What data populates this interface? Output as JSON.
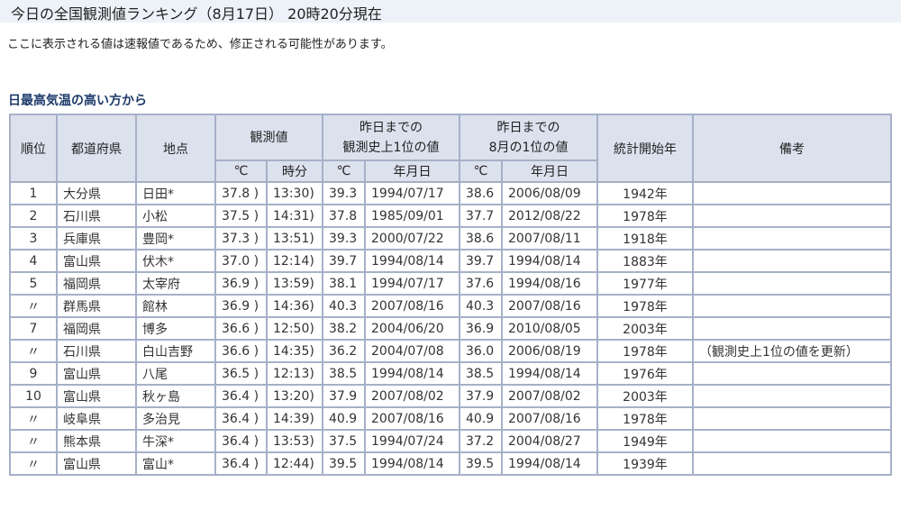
{
  "page": {
    "title": "今日の全国観測値ランキング（8月17日） 20時20分現在",
    "note": "ここに表示される値は速報値であるため、修正される可能性があります。",
    "section_title": "日最高気温の高い方から"
  },
  "colors": {
    "title_bg": "#edf2f8",
    "header_bg": "#dbe2ee",
    "border": "#a6b0c8",
    "section_text": "#1f3b6b"
  },
  "table": {
    "headers": {
      "rank": "順位",
      "prefecture": "都道府県",
      "location": "地点",
      "observed": "観測値",
      "record_all_line1": "昨日までの",
      "record_all_line2": "観測史上1位の値",
      "record_aug_line1": "昨日までの",
      "record_aug_line2": "8月の1位の値",
      "stats_start": "統計開始年",
      "remarks": "備考",
      "sub_celsius": "℃",
      "sub_time": "時分",
      "sub_date": "年月日"
    },
    "rows": [
      {
        "rank": "1",
        "pref": "大分県",
        "loc": "日田*",
        "temp": "37.8 )",
        "time": "13:30)",
        "rec_temp": "39.3",
        "rec_date": "1994/07/17",
        "aug_temp": "38.6",
        "aug_date": "2006/08/09",
        "start": "1942年",
        "remark": ""
      },
      {
        "rank": "2",
        "pref": "石川県",
        "loc": "小松",
        "temp": "37.5 )",
        "time": "14:31)",
        "rec_temp": "37.8",
        "rec_date": "1985/09/01",
        "aug_temp": "37.7",
        "aug_date": "2012/08/22",
        "start": "1978年",
        "remark": ""
      },
      {
        "rank": "3",
        "pref": "兵庫県",
        "loc": "豊岡*",
        "temp": "37.3 )",
        "time": "13:51)",
        "rec_temp": "39.3",
        "rec_date": "2000/07/22",
        "aug_temp": "38.6",
        "aug_date": "2007/08/11",
        "start": "1918年",
        "remark": ""
      },
      {
        "rank": "4",
        "pref": "富山県",
        "loc": "伏木*",
        "temp": "37.0 )",
        "time": "12:14)",
        "rec_temp": "39.7",
        "rec_date": "1994/08/14",
        "aug_temp": "39.7",
        "aug_date": "1994/08/14",
        "start": "1883年",
        "remark": ""
      },
      {
        "rank": "5",
        "pref": "福岡県",
        "loc": "太宰府",
        "temp": "36.9 )",
        "time": "13:59)",
        "rec_temp": "38.1",
        "rec_date": "1994/07/17",
        "aug_temp": "37.6",
        "aug_date": "1994/08/16",
        "start": "1977年",
        "remark": ""
      },
      {
        "rank": "〃",
        "pref": "群馬県",
        "loc": "館林",
        "temp": "36.9 )",
        "time": "14:36)",
        "rec_temp": "40.3",
        "rec_date": "2007/08/16",
        "aug_temp": "40.3",
        "aug_date": "2007/08/16",
        "start": "1978年",
        "remark": ""
      },
      {
        "rank": "7",
        "pref": "福岡県",
        "loc": "博多",
        "temp": "36.6 )",
        "time": "12:50)",
        "rec_temp": "38.2",
        "rec_date": "2004/06/20",
        "aug_temp": "36.9",
        "aug_date": "2010/08/05",
        "start": "2003年",
        "remark": ""
      },
      {
        "rank": "〃",
        "pref": "石川県",
        "loc": "白山吉野",
        "temp": "36.6 )",
        "time": "14:35)",
        "rec_temp": "36.2",
        "rec_date": "2004/07/08",
        "aug_temp": "36.0",
        "aug_date": "2006/08/19",
        "start": "1978年",
        "remark": "（観測史上1位の値を更新）"
      },
      {
        "rank": "9",
        "pref": "富山県",
        "loc": "八尾",
        "temp": "36.5 )",
        "time": "12:13)",
        "rec_temp": "38.5",
        "rec_date": "1994/08/14",
        "aug_temp": "38.5",
        "aug_date": "1994/08/14",
        "start": "1976年",
        "remark": ""
      },
      {
        "rank": "10",
        "pref": "富山県",
        "loc": "秋ヶ島",
        "temp": "36.4 )",
        "time": "13:20)",
        "rec_temp": "37.9",
        "rec_date": "2007/08/02",
        "aug_temp": "37.9",
        "aug_date": "2007/08/02",
        "start": "2003年",
        "remark": ""
      },
      {
        "rank": "〃",
        "pref": "岐阜県",
        "loc": "多治見",
        "temp": "36.4 )",
        "time": "14:39)",
        "rec_temp": "40.9",
        "rec_date": "2007/08/16",
        "aug_temp": "40.9",
        "aug_date": "2007/08/16",
        "start": "1978年",
        "remark": ""
      },
      {
        "rank": "〃",
        "pref": "熊本県",
        "loc": "牛深*",
        "temp": "36.4 )",
        "time": "13:53)",
        "rec_temp": "37.5",
        "rec_date": "1994/07/24",
        "aug_temp": "37.2",
        "aug_date": "2004/08/27",
        "start": "1949年",
        "remark": ""
      },
      {
        "rank": "〃",
        "pref": "富山県",
        "loc": "富山*",
        "temp": "36.4 )",
        "time": "12:44)",
        "rec_temp": "39.5",
        "rec_date": "1994/08/14",
        "aug_temp": "39.5",
        "aug_date": "1994/08/14",
        "start": "1939年",
        "remark": ""
      }
    ]
  }
}
